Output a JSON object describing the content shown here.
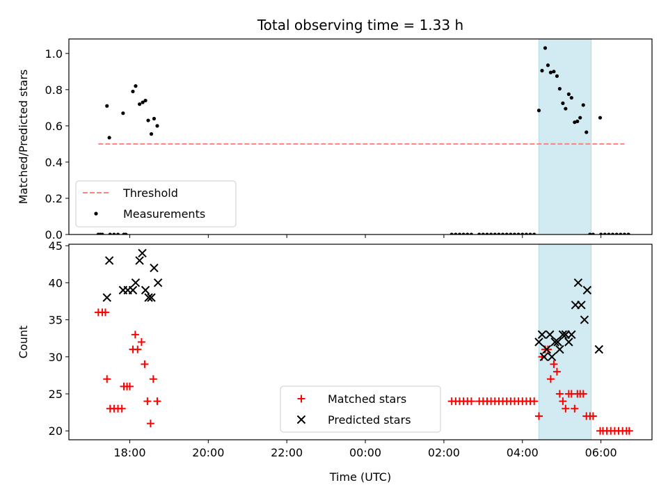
{
  "chart_data": {
    "title": "Total observing time = 1.33 h",
    "xlabel": "Time (UTC)",
    "x_tick_labels": [
      "18:00",
      "20:00",
      "22:00",
      "00:00",
      "02:00",
      "04:00",
      "06:00"
    ],
    "x_tick_hours": [
      18,
      20,
      22,
      24,
      26,
      28,
      30
    ],
    "xlim": [
      16.45,
      31.3
    ],
    "highlight_span": [
      28.42,
      29.75
    ],
    "highlight_color": "#add8e6",
    "panels": [
      {
        "type": "scatter",
        "ylabel": "Matched/Predicted stars",
        "ylim": [
          0.0,
          1.08
        ],
        "yticks": [
          0.0,
          0.2,
          0.4,
          0.6,
          0.8,
          1.0
        ],
        "ytick_labels": [
          "0.0",
          "0.2",
          "0.4",
          "0.6",
          "0.8",
          "1.0"
        ],
        "threshold": {
          "value": 0.5,
          "x_range": [
            17.2,
            30.6
          ],
          "color": "#ff7f7f"
        },
        "legend": {
          "position": "lower left",
          "entries": [
            "Threshold",
            "Measurements"
          ]
        },
        "measurements": [
          [
            17.2,
            0.0
          ],
          [
            17.25,
            0.0
          ],
          [
            17.3,
            0.0
          ],
          [
            17.5,
            0.0
          ],
          [
            17.6,
            0.0
          ],
          [
            17.7,
            0.0
          ],
          [
            17.85,
            0.0
          ],
          [
            17.9,
            0.0
          ],
          [
            17.42,
            0.71
          ],
          [
            17.48,
            0.535
          ],
          [
            17.83,
            0.67
          ],
          [
            18.08,
            0.79
          ],
          [
            18.15,
            0.82
          ],
          [
            18.25,
            0.72
          ],
          [
            18.33,
            0.73
          ],
          [
            18.4,
            0.74
          ],
          [
            18.47,
            0.63
          ],
          [
            18.55,
            0.555
          ],
          [
            18.62,
            0.64
          ],
          [
            18.7,
            0.6
          ],
          [
            26.2,
            0.0
          ],
          [
            26.3,
            0.0
          ],
          [
            26.4,
            0.0
          ],
          [
            26.5,
            0.0
          ],
          [
            26.6,
            0.0
          ],
          [
            26.7,
            0.0
          ],
          [
            26.9,
            0.0
          ],
          [
            27.0,
            0.0
          ],
          [
            27.1,
            0.0
          ],
          [
            27.2,
            0.0
          ],
          [
            27.3,
            0.0
          ],
          [
            27.4,
            0.0
          ],
          [
            27.5,
            0.0
          ],
          [
            27.6,
            0.0
          ],
          [
            27.7,
            0.0
          ],
          [
            27.8,
            0.0
          ],
          [
            27.9,
            0.0
          ],
          [
            28.0,
            0.0
          ],
          [
            28.1,
            0.0
          ],
          [
            28.2,
            0.0
          ],
          [
            28.3,
            0.0
          ],
          [
            28.42,
            0.685
          ],
          [
            28.5,
            0.905
          ],
          [
            28.58,
            1.03
          ],
          [
            28.65,
            0.935
          ],
          [
            28.72,
            0.895
          ],
          [
            28.8,
            0.9
          ],
          [
            28.88,
            0.875
          ],
          [
            28.95,
            0.805
          ],
          [
            29.03,
            0.725
          ],
          [
            29.1,
            0.695
          ],
          [
            29.18,
            0.775
          ],
          [
            29.25,
            0.755
          ],
          [
            29.33,
            0.62
          ],
          [
            29.4,
            0.625
          ],
          [
            29.47,
            0.645
          ],
          [
            29.55,
            0.715
          ],
          [
            29.63,
            0.565
          ],
          [
            29.98,
            0.645
          ],
          [
            29.72,
            0.0
          ],
          [
            29.8,
            0.0
          ],
          [
            30.0,
            0.0
          ],
          [
            30.1,
            0.0
          ],
          [
            30.2,
            0.0
          ],
          [
            30.3,
            0.0
          ],
          [
            30.4,
            0.0
          ],
          [
            30.5,
            0.0
          ],
          [
            30.6,
            0.0
          ],
          [
            30.7,
            0.0
          ]
        ]
      },
      {
        "type": "scatter",
        "ylabel": "Count",
        "ylim": [
          18.8,
          45.2
        ],
        "yticks": [
          20,
          25,
          30,
          35,
          40,
          45
        ],
        "ytick_labels": [
          "20",
          "25",
          "30",
          "35",
          "40",
          "45"
        ],
        "legend": {
          "position": "lower center",
          "entries": [
            "Matched stars",
            "Predicted stars"
          ]
        },
        "series": [
          {
            "name": "Matched stars",
            "marker": "+",
            "color": "#ff0000",
            "points": [
              [
                17.2,
                36
              ],
              [
                17.3,
                36
              ],
              [
                17.38,
                36
              ],
              [
                17.42,
                27
              ],
              [
                17.5,
                23
              ],
              [
                17.6,
                23
              ],
              [
                17.7,
                23
              ],
              [
                17.8,
                23
              ],
              [
                17.85,
                26
              ],
              [
                17.93,
                26
              ],
              [
                18.0,
                26
              ],
              [
                18.08,
                31
              ],
              [
                18.14,
                33
              ],
              [
                18.2,
                31
              ],
              [
                18.3,
                32
              ],
              [
                18.38,
                29
              ],
              [
                18.45,
                24
              ],
              [
                18.53,
                21
              ],
              [
                18.6,
                27
              ],
              [
                18.7,
                24
              ],
              [
                26.2,
                24
              ],
              [
                26.3,
                24
              ],
              [
                26.4,
                24
              ],
              [
                26.5,
                24
              ],
              [
                26.6,
                24
              ],
              [
                26.7,
                24
              ],
              [
                26.9,
                24
              ],
              [
                27.0,
                24
              ],
              [
                27.1,
                24
              ],
              [
                27.2,
                24
              ],
              [
                27.3,
                24
              ],
              [
                27.4,
                24
              ],
              [
                27.5,
                24
              ],
              [
                27.6,
                24
              ],
              [
                27.7,
                24
              ],
              [
                27.8,
                24
              ],
              [
                27.9,
                24
              ],
              [
                28.0,
                24
              ],
              [
                28.1,
                24
              ],
              [
                28.2,
                24
              ],
              [
                28.3,
                24
              ],
              [
                28.42,
                22
              ],
              [
                28.5,
                30
              ],
              [
                28.58,
                31
              ],
              [
                28.65,
                31
              ],
              [
                28.72,
                27
              ],
              [
                28.8,
                29
              ],
              [
                28.88,
                28
              ],
              [
                28.95,
                25
              ],
              [
                29.03,
                24
              ],
              [
                29.1,
                23
              ],
              [
                29.18,
                25
              ],
              [
                29.25,
                25
              ],
              [
                29.33,
                23
              ],
              [
                29.4,
                25
              ],
              [
                29.47,
                25
              ],
              [
                29.55,
                25
              ],
              [
                29.63,
                22
              ],
              [
                29.72,
                22
              ],
              [
                29.8,
                22
              ],
              [
                29.98,
                20
              ],
              [
                30.05,
                20
              ],
              [
                30.15,
                20
              ],
              [
                30.25,
                20
              ],
              [
                30.35,
                20
              ],
              [
                30.45,
                20
              ],
              [
                30.55,
                20
              ],
              [
                30.65,
                20
              ],
              [
                30.72,
                20
              ]
            ]
          },
          {
            "name": "Predicted stars",
            "marker": "x",
            "color": "#000000",
            "points": [
              [
                17.42,
                38
              ],
              [
                17.48,
                43
              ],
              [
                17.83,
                39
              ],
              [
                17.95,
                39
              ],
              [
                18.08,
                39
              ],
              [
                18.15,
                40
              ],
              [
                18.25,
                43
              ],
              [
                18.32,
                44
              ],
              [
                18.4,
                39
              ],
              [
                18.48,
                38
              ],
              [
                18.55,
                38
              ],
              [
                18.62,
                42
              ],
              [
                18.72,
                40
              ],
              [
                28.42,
                32
              ],
              [
                28.5,
                33
              ],
              [
                28.55,
                30
              ],
              [
                28.62,
                31
              ],
              [
                28.7,
                33
              ],
              [
                28.75,
                30
              ],
              [
                28.83,
                32
              ],
              [
                28.9,
                32
              ],
              [
                28.95,
                31
              ],
              [
                29.03,
                33
              ],
              [
                29.1,
                33
              ],
              [
                29.18,
                32
              ],
              [
                29.25,
                33
              ],
              [
                29.35,
                37
              ],
              [
                29.42,
                40
              ],
              [
                29.5,
                37
              ],
              [
                29.58,
                35
              ],
              [
                29.65,
                39
              ],
              [
                29.95,
                31
              ]
            ]
          }
        ]
      }
    ]
  }
}
